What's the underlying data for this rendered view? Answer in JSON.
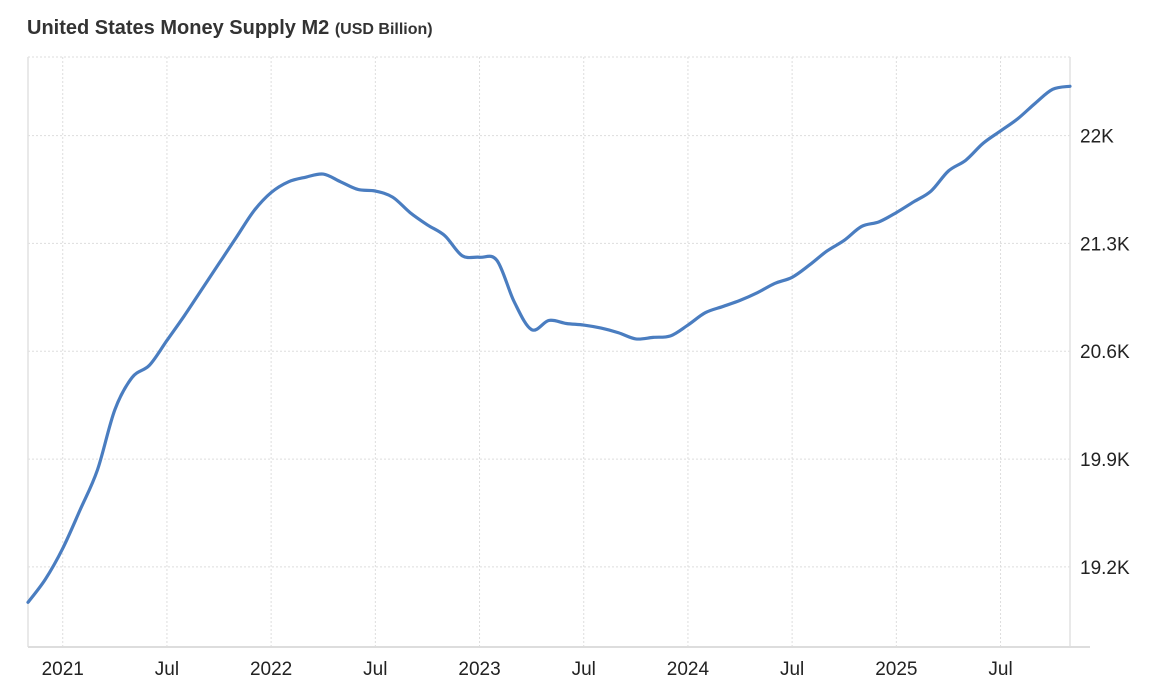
{
  "chart_data": {
    "type": "line",
    "title": "United States Money Supply M2",
    "unit": "(USD Billion)",
    "x": [
      "2020-11",
      "2020-12",
      "2021-01",
      "2021-02",
      "2021-03",
      "2021-04",
      "2021-05",
      "2021-06",
      "2021-07",
      "2021-08",
      "2021-09",
      "2021-10",
      "2021-11",
      "2021-12",
      "2022-01",
      "2022-02",
      "2022-03",
      "2022-04",
      "2022-05",
      "2022-06",
      "2022-07",
      "2022-08",
      "2022-09",
      "2022-10",
      "2022-11",
      "2022-12",
      "2023-01",
      "2023-02",
      "2023-03",
      "2023-04",
      "2023-05",
      "2023-06",
      "2023-07",
      "2023-08",
      "2023-09",
      "2023-10",
      "2023-11",
      "2023-12",
      "2024-01",
      "2024-02",
      "2024-03",
      "2024-04",
      "2024-05",
      "2024-06",
      "2024-07",
      "2024-08",
      "2024-09",
      "2024-10",
      "2024-11",
      "2024-12",
      "2025-01",
      "2025-02",
      "2025-03",
      "2025-04",
      "2025-05",
      "2025-06",
      "2025-07",
      "2025-08",
      "2025-09",
      "2025-10",
      "2025-11"
    ],
    "series": [
      {
        "values": [
          18970,
          19120,
          19320,
          19570,
          19830,
          20220,
          20430,
          20510,
          20670,
          20830,
          21000,
          21170,
          21340,
          21510,
          21630,
          21700,
          21730,
          21750,
          21700,
          21650,
          21640,
          21600,
          21500,
          21420,
          21350,
          21220,
          21210,
          21190,
          20920,
          20740,
          20800,
          20780,
          20770,
          20750,
          20720,
          20680,
          20690,
          20700,
          20770,
          20850,
          20890,
          20930,
          20980,
          21040,
          21080,
          21160,
          21250,
          21320,
          21410,
          21440,
          21500,
          21570,
          21640,
          21770,
          21840,
          21950,
          22030,
          22110,
          22210,
          22300,
          22320
        ]
      }
    ],
    "x_ticks": [
      {
        "date": "2021-01",
        "label": "2021"
      },
      {
        "date": "2021-07",
        "label": "Jul"
      },
      {
        "date": "2022-01",
        "label": "2022"
      },
      {
        "date": "2022-07",
        "label": "Jul"
      },
      {
        "date": "2023-01",
        "label": "2023"
      },
      {
        "date": "2023-07",
        "label": "Jul"
      },
      {
        "date": "2024-01",
        "label": "2024"
      },
      {
        "date": "2024-07",
        "label": "Jul"
      },
      {
        "date": "2025-01",
        "label": "2025"
      },
      {
        "date": "2025-07",
        "label": "Jul"
      }
    ],
    "y_ticks": [
      {
        "value": 19200,
        "label": "19.2K"
      },
      {
        "value": 19900,
        "label": "19.9K"
      },
      {
        "value": 20600,
        "label": "20.6K"
      },
      {
        "value": 21300,
        "label": "21.3K"
      },
      {
        "value": 22000,
        "label": "22K"
      }
    ],
    "xlim": [
      "2020-11",
      "2025-11"
    ],
    "ylim": [
      18680,
      22510
    ],
    "y_axis_side": "right",
    "grid": true,
    "line_color": "#4a7dc0"
  }
}
